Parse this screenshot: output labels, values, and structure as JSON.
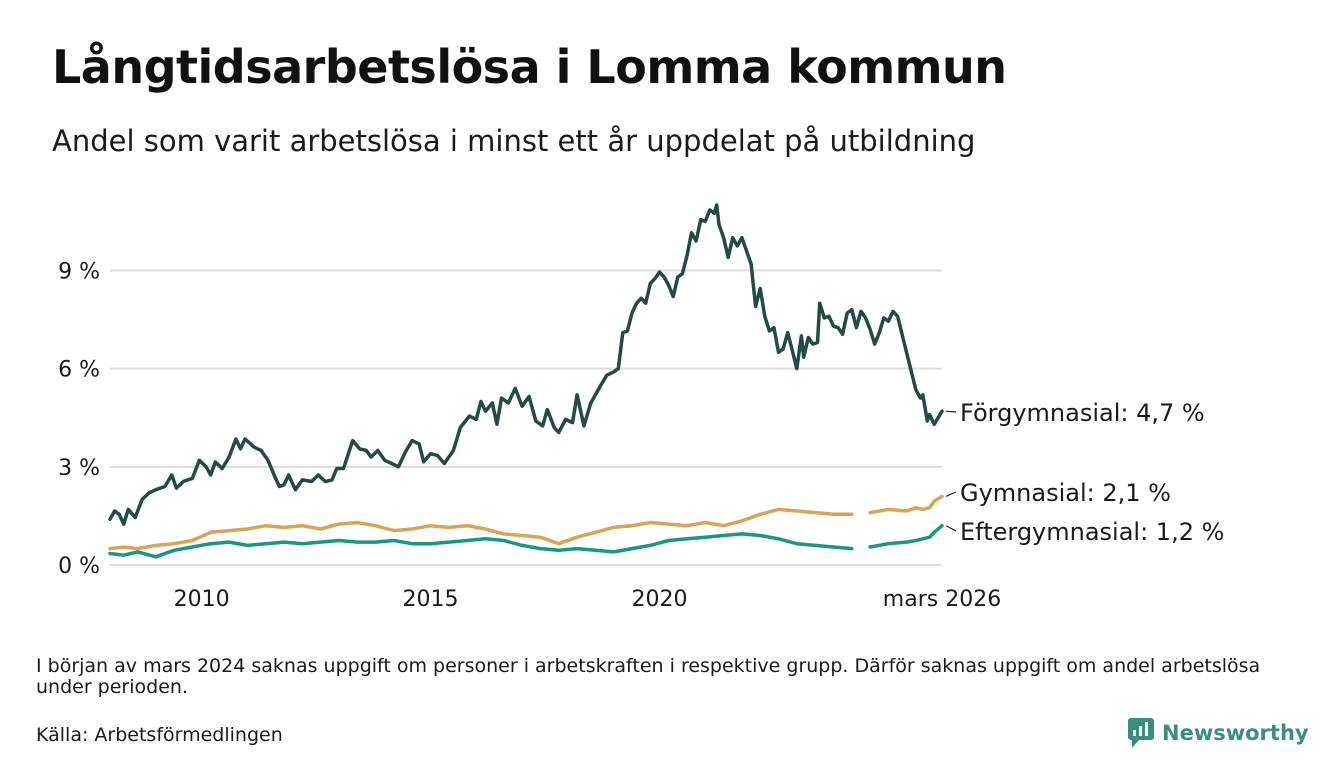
{
  "header": {
    "title": "Långtidsarbetslösa i Lomma kommun",
    "subtitle": "Andel som varit arbetslösa i minst ett år uppdelat på utbildning"
  },
  "footer": {
    "footnote": "I början av mars 2024 saknas uppgift om personer i arbetskraften i respektive grupp. Därför saknas uppgift om andel arbetslösa under perioden.",
    "source": "Källa: Arbetsförmedlingen",
    "logo_text": "Newsworthy"
  },
  "colors": {
    "forgymnasial": "#244a45",
    "gymnasial": "#d6a556",
    "eftergymnasial": "#1a9683",
    "grid": "#dddddd",
    "logo": "#3b8d7e"
  },
  "chart_data": {
    "type": "line",
    "title": "Långtidsarbetslösa i Lomma kommun",
    "subtitle": "Andel som varit arbetslösa i minst ett år uppdelat på utbildning",
    "xlabel": "",
    "ylabel": "",
    "x_unit": "year (decimal)",
    "xlim": [
      2008.0,
      2026.17
    ],
    "ylim": [
      0,
      11
    ],
    "yticks": [
      0,
      3,
      6,
      9
    ],
    "ytick_labels": [
      "0 %",
      "3 %",
      "6 %",
      "9 %"
    ],
    "xticks": [
      2010,
      2015,
      2020,
      2026.17
    ],
    "xtick_labels": [
      "2010",
      "2015",
      "2020",
      "mars 2026"
    ],
    "grid": true,
    "gap": {
      "from": 2024.0,
      "to": 2024.3,
      "note": "data saknas mars 2024"
    },
    "series": [
      {
        "name": "Förgymnasial",
        "end_label": "Förgymnasial: 4,7 %",
        "color_key": "forgymnasial",
        "points": [
          [
            2008.0,
            1.4
          ],
          [
            2008.1,
            1.65
          ],
          [
            2008.2,
            1.55
          ],
          [
            2008.3,
            1.25
          ],
          [
            2008.4,
            1.7
          ],
          [
            2008.55,
            1.45
          ],
          [
            2008.7,
            2.0
          ],
          [
            2008.85,
            2.2
          ],
          [
            2009.0,
            2.3
          ],
          [
            2009.2,
            2.4
          ],
          [
            2009.35,
            2.75
          ],
          [
            2009.45,
            2.35
          ],
          [
            2009.6,
            2.55
          ],
          [
            2009.8,
            2.65
          ],
          [
            2009.95,
            3.2
          ],
          [
            2010.1,
            3.0
          ],
          [
            2010.2,
            2.75
          ],
          [
            2010.3,
            3.15
          ],
          [
            2010.45,
            2.95
          ],
          [
            2010.6,
            3.3
          ],
          [
            2010.75,
            3.85
          ],
          [
            2010.85,
            3.55
          ],
          [
            2010.95,
            3.85
          ],
          [
            2011.15,
            3.6
          ],
          [
            2011.3,
            3.5
          ],
          [
            2011.45,
            3.2
          ],
          [
            2011.6,
            2.7
          ],
          [
            2011.7,
            2.4
          ],
          [
            2011.8,
            2.45
          ],
          [
            2011.9,
            2.75
          ],
          [
            2012.05,
            2.3
          ],
          [
            2012.2,
            2.6
          ],
          [
            2012.4,
            2.55
          ],
          [
            2012.55,
            2.75
          ],
          [
            2012.7,
            2.55
          ],
          [
            2012.85,
            2.6
          ],
          [
            2012.95,
            2.95
          ],
          [
            2013.1,
            2.95
          ],
          [
            2013.3,
            3.8
          ],
          [
            2013.45,
            3.55
          ],
          [
            2013.6,
            3.5
          ],
          [
            2013.7,
            3.3
          ],
          [
            2013.85,
            3.5
          ],
          [
            2014.0,
            3.2
          ],
          [
            2014.15,
            3.1
          ],
          [
            2014.3,
            3.0
          ],
          [
            2014.45,
            3.45
          ],
          [
            2014.6,
            3.8
          ],
          [
            2014.75,
            3.7
          ],
          [
            2014.85,
            3.15
          ],
          [
            2015.0,
            3.4
          ],
          [
            2015.15,
            3.35
          ],
          [
            2015.3,
            3.1
          ],
          [
            2015.5,
            3.5
          ],
          [
            2015.65,
            4.2
          ],
          [
            2015.85,
            4.55
          ],
          [
            2016.0,
            4.45
          ],
          [
            2016.1,
            5.0
          ],
          [
            2016.2,
            4.7
          ],
          [
            2016.35,
            4.95
          ],
          [
            2016.45,
            4.3
          ],
          [
            2016.55,
            5.1
          ],
          [
            2016.7,
            4.95
          ],
          [
            2016.85,
            5.4
          ],
          [
            2017.0,
            4.85
          ],
          [
            2017.15,
            5.15
          ],
          [
            2017.3,
            4.4
          ],
          [
            2017.45,
            4.25
          ],
          [
            2017.55,
            4.75
          ],
          [
            2017.7,
            4.2
          ],
          [
            2017.8,
            4.05
          ],
          [
            2017.95,
            4.45
          ],
          [
            2018.1,
            4.35
          ],
          [
            2018.2,
            5.2
          ],
          [
            2018.35,
            4.25
          ],
          [
            2018.5,
            4.95
          ],
          [
            2018.7,
            5.45
          ],
          [
            2018.85,
            5.8
          ],
          [
            2019.0,
            5.9
          ],
          [
            2019.1,
            6.0
          ],
          [
            2019.2,
            7.1
          ],
          [
            2019.3,
            7.15
          ],
          [
            2019.4,
            7.7
          ],
          [
            2019.5,
            8.0
          ],
          [
            2019.6,
            8.15
          ],
          [
            2019.7,
            8.0
          ],
          [
            2019.8,
            8.6
          ],
          [
            2019.9,
            8.75
          ],
          [
            2020.0,
            8.95
          ],
          [
            2020.1,
            8.8
          ],
          [
            2020.2,
            8.55
          ],
          [
            2020.3,
            8.2
          ],
          [
            2020.4,
            8.8
          ],
          [
            2020.5,
            8.9
          ],
          [
            2020.6,
            9.45
          ],
          [
            2020.7,
            10.15
          ],
          [
            2020.8,
            9.9
          ],
          [
            2020.9,
            10.55
          ],
          [
            2021.0,
            10.5
          ],
          [
            2021.1,
            10.85
          ],
          [
            2021.2,
            10.75
          ],
          [
            2021.25,
            11.0
          ],
          [
            2021.3,
            10.4
          ],
          [
            2021.4,
            10.0
          ],
          [
            2021.5,
            9.4
          ],
          [
            2021.6,
            10.0
          ],
          [
            2021.7,
            9.75
          ],
          [
            2021.8,
            10.0
          ],
          [
            2021.9,
            9.6
          ],
          [
            2022.0,
            9.2
          ],
          [
            2022.1,
            7.9
          ],
          [
            2022.2,
            8.45
          ],
          [
            2022.3,
            7.6
          ],
          [
            2022.4,
            7.15
          ],
          [
            2022.5,
            7.25
          ],
          [
            2022.6,
            6.5
          ],
          [
            2022.7,
            6.6
          ],
          [
            2022.8,
            7.1
          ],
          [
            2022.9,
            6.55
          ],
          [
            2023.0,
            6.0
          ],
          [
            2023.1,
            7.0
          ],
          [
            2023.15,
            6.35
          ],
          [
            2023.25,
            6.95
          ],
          [
            2023.35,
            6.75
          ],
          [
            2023.45,
            6.8
          ],
          [
            2023.5,
            8.0
          ],
          [
            2023.6,
            7.55
          ],
          [
            2023.7,
            7.6
          ],
          [
            2023.8,
            7.3
          ],
          [
            2023.9,
            7.25
          ],
          [
            2024.0,
            7.05
          ],
          [
            2024.1,
            7.7
          ],
          [
            2024.2,
            7.8
          ],
          [
            2024.3,
            7.25
          ],
          [
            2024.4,
            7.75
          ],
          [
            2024.5,
            7.55
          ],
          [
            2024.6,
            7.2
          ],
          [
            2024.7,
            6.75
          ],
          [
            2024.8,
            7.1
          ],
          [
            2024.9,
            7.55
          ],
          [
            2025.0,
            7.45
          ],
          [
            2025.1,
            7.75
          ],
          [
            2025.2,
            7.6
          ],
          [
            2025.6,
            5.35
          ],
          [
            2025.7,
            5.1
          ],
          [
            2025.75,
            5.2
          ],
          [
            2025.85,
            4.4
          ],
          [
            2025.9,
            4.6
          ],
          [
            2026.0,
            4.3
          ],
          [
            2026.17,
            4.7
          ]
        ],
        "note": "x-values approximate; the original has a gap between the two segments"
      },
      {
        "name": "Gymnasial",
        "end_label": "Gymnasial: 2,1 %",
        "color_key": "gymnasial",
        "points": [
          [
            2008.0,
            0.5
          ],
          [
            2008.3,
            0.55
          ],
          [
            2008.6,
            0.5
          ],
          [
            2009.0,
            0.6
          ],
          [
            2009.4,
            0.65
          ],
          [
            2009.8,
            0.75
          ],
          [
            2010.2,
            1.0
          ],
          [
            2010.6,
            1.05
          ],
          [
            2011.0,
            1.1
          ],
          [
            2011.4,
            1.2
          ],
          [
            2011.8,
            1.15
          ],
          [
            2012.2,
            1.2
          ],
          [
            2012.6,
            1.1
          ],
          [
            2013.0,
            1.25
          ],
          [
            2013.4,
            1.3
          ],
          [
            2013.8,
            1.2
          ],
          [
            2014.2,
            1.05
          ],
          [
            2014.6,
            1.1
          ],
          [
            2015.0,
            1.2
          ],
          [
            2015.4,
            1.15
          ],
          [
            2015.8,
            1.2
          ],
          [
            2016.2,
            1.1
          ],
          [
            2016.6,
            0.95
          ],
          [
            2017.0,
            0.9
          ],
          [
            2017.4,
            0.85
          ],
          [
            2017.8,
            0.65
          ],
          [
            2018.2,
            0.85
          ],
          [
            2018.6,
            1.0
          ],
          [
            2019.0,
            1.15
          ],
          [
            2019.4,
            1.2
          ],
          [
            2019.8,
            1.3
          ],
          [
            2020.2,
            1.25
          ],
          [
            2020.6,
            1.2
          ],
          [
            2021.0,
            1.3
          ],
          [
            2021.4,
            1.2
          ],
          [
            2021.8,
            1.35
          ],
          [
            2022.2,
            1.55
          ],
          [
            2022.6,
            1.7
          ],
          [
            2023.0,
            1.65
          ],
          [
            2023.4,
            1.6
          ],
          [
            2023.8,
            1.55
          ],
          [
            2024.2,
            1.55
          ],
          [
            2024.6,
            1.6
          ],
          [
            2025.0,
            1.7
          ],
          [
            2025.4,
            1.65
          ],
          [
            2025.6,
            1.75
          ],
          [
            2025.75,
            1.7
          ],
          [
            2025.9,
            1.75
          ],
          [
            2026.0,
            1.95
          ],
          [
            2026.17,
            2.1
          ]
        ]
      },
      {
        "name": "Eftergymnasial",
        "end_label": "Eftergymnasial: 1,2 %",
        "color_key": "eftergymnasial",
        "points": [
          [
            2008.0,
            0.35
          ],
          [
            2008.3,
            0.3
          ],
          [
            2008.6,
            0.4
          ],
          [
            2009.0,
            0.25
          ],
          [
            2009.4,
            0.45
          ],
          [
            2009.8,
            0.55
          ],
          [
            2010.2,
            0.65
          ],
          [
            2010.6,
            0.7
          ],
          [
            2011.0,
            0.6
          ],
          [
            2011.4,
            0.65
          ],
          [
            2011.8,
            0.7
          ],
          [
            2012.2,
            0.65
          ],
          [
            2012.6,
            0.7
          ],
          [
            2013.0,
            0.75
          ],
          [
            2013.4,
            0.7
          ],
          [
            2013.8,
            0.7
          ],
          [
            2014.2,
            0.75
          ],
          [
            2014.6,
            0.65
          ],
          [
            2015.0,
            0.65
          ],
          [
            2015.4,
            0.7
          ],
          [
            2015.8,
            0.75
          ],
          [
            2016.2,
            0.8
          ],
          [
            2016.6,
            0.75
          ],
          [
            2017.0,
            0.6
          ],
          [
            2017.4,
            0.5
          ],
          [
            2017.8,
            0.45
          ],
          [
            2018.2,
            0.5
          ],
          [
            2018.6,
            0.45
          ],
          [
            2019.0,
            0.4
          ],
          [
            2019.4,
            0.5
          ],
          [
            2019.8,
            0.6
          ],
          [
            2020.2,
            0.75
          ],
          [
            2020.6,
            0.8
          ],
          [
            2021.0,
            0.85
          ],
          [
            2021.4,
            0.9
          ],
          [
            2021.8,
            0.95
          ],
          [
            2022.2,
            0.9
          ],
          [
            2022.6,
            0.8
          ],
          [
            2023.0,
            0.65
          ],
          [
            2023.4,
            0.6
          ],
          [
            2023.8,
            0.55
          ],
          [
            2024.2,
            0.5
          ],
          [
            2024.6,
            0.55
          ],
          [
            2025.0,
            0.65
          ],
          [
            2025.4,
            0.7
          ],
          [
            2025.6,
            0.75
          ],
          [
            2025.75,
            0.8
          ],
          [
            2025.9,
            0.85
          ],
          [
            2026.0,
            1.0
          ],
          [
            2026.17,
            1.2
          ]
        ]
      }
    ]
  }
}
